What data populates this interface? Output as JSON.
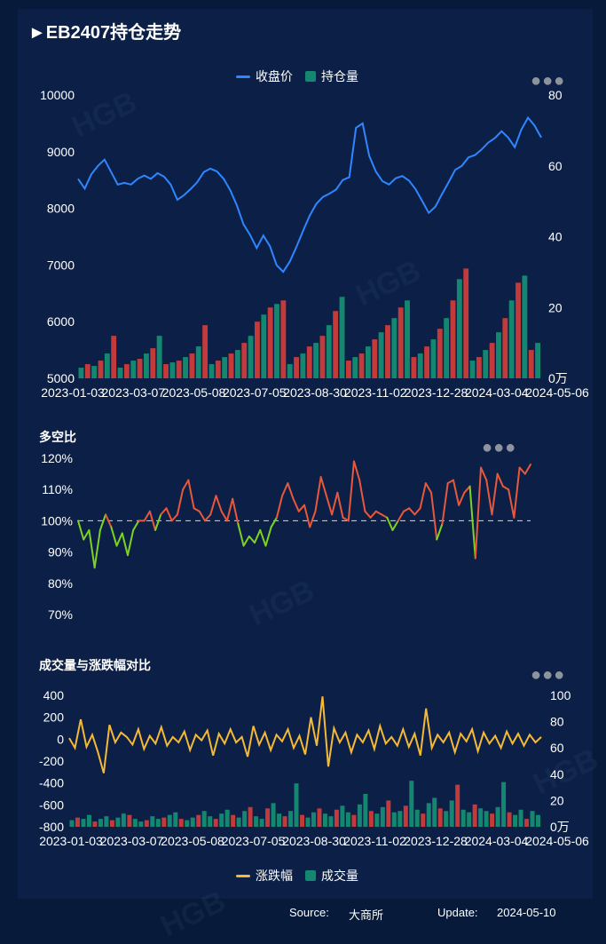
{
  "title": "►EB2407持仓走势",
  "section2_title": "多空比",
  "section3_title": "成交量与涨跌幅对比",
  "watermark": "HGB",
  "menu_icon": "more-dots-icon",
  "colors": {
    "background": "#081a3a",
    "panel": "#0c2047",
    "price": "#2f86ff",
    "bar_green": "#13876f",
    "bar_red": "#c23a3a",
    "ratio_up": "#e8583a",
    "ratio_down": "#7ed321",
    "change": "#f5b935"
  },
  "footer": {
    "source_label": "Source:",
    "source": "大商所",
    "update_label": "Update:",
    "update": "2024-05-10"
  },
  "chart_data": [
    {
      "type": "line+bar",
      "title": "EB2407持仓走势",
      "series": [
        {
          "name": "收盘价",
          "axis": "left",
          "type": "line",
          "values": [
            8520,
            8350,
            8600,
            8750,
            8860,
            8640,
            8420,
            8450,
            8420,
            8520,
            8580,
            8520,
            8620,
            8560,
            8420,
            8150,
            8230,
            8340,
            8460,
            8640,
            8700,
            8650,
            8520,
            8320,
            8050,
            7720,
            7530,
            7300,
            7520,
            7330,
            7000,
            6880,
            7060,
            7320,
            7600,
            7870,
            8080,
            8200,
            8260,
            8330,
            8500,
            8550,
            9420,
            9500,
            8930,
            8650,
            8480,
            8420,
            8530,
            8570,
            8490,
            8340,
            8130,
            7920,
            8030,
            8250,
            8460,
            8680,
            8750,
            8900,
            8940,
            9040,
            9160,
            9240,
            9360,
            9250,
            9080,
            9390,
            9600,
            9460,
            9250
          ]
        },
        {
          "name": "持仓量",
          "axis": "right",
          "type": "bar",
          "unit": "万",
          "values": [
            3,
            4,
            3.5,
            5,
            7,
            12,
            3,
            4,
            5,
            5.5,
            7,
            8.5,
            12,
            4,
            4.5,
            5,
            6,
            7,
            9,
            15,
            4,
            5,
            6,
            7,
            8,
            10,
            12,
            16,
            18,
            20,
            21,
            22,
            4,
            6,
            7,
            9,
            10,
            12,
            15,
            19,
            23,
            5,
            6,
            7,
            9,
            11,
            13,
            15,
            17,
            20,
            22,
            6,
            7,
            9,
            11,
            14,
            17,
            22,
            28,
            31,
            5,
            6,
            8,
            10,
            13,
            17,
            22,
            27,
            29,
            8,
            10
          ]
        }
      ],
      "x_tick_labels": [
        "2023-01-03",
        "2023-03-07",
        "2023-05-08",
        "2023-07-05",
        "2023-08-30",
        "2023-11-02",
        "2023-12-28",
        "2024-03-04",
        "2024-05-06"
      ],
      "y_left": {
        "min": 5000,
        "max": 10000,
        "ticks": [
          "5000",
          "6000",
          "7000",
          "8000",
          "9000",
          "10000"
        ]
      },
      "y_right": {
        "min": 0,
        "max": 80,
        "ticks": [
          "0万",
          "20",
          "40",
          "60",
          "80"
        ]
      },
      "legend_position": "top-center"
    },
    {
      "type": "line",
      "title": "多空比",
      "series": [
        {
          "name": "多空比",
          "unit": "%",
          "values": [
            100,
            94,
            97,
            85,
            97,
            102,
            98,
            92,
            96,
            89,
            97,
            100,
            100,
            103,
            97,
            102,
            104,
            100,
            102,
            110,
            113,
            104,
            103,
            100,
            102,
            108,
            103,
            100,
            107,
            99,
            92,
            95,
            93,
            97,
            92,
            98,
            101,
            108,
            112,
            107,
            103,
            105,
            98,
            103,
            114,
            108,
            102,
            109,
            101,
            100,
            119,
            113,
            103,
            101,
            103,
            102,
            101,
            97,
            100,
            103,
            104,
            102,
            104,
            112,
            109,
            94,
            99,
            112,
            113,
            105,
            109,
            111,
            88,
            117,
            113,
            102,
            115,
            111,
            110,
            101,
            117,
            115,
            118
          ]
        }
      ],
      "y_axis": {
        "min": 70,
        "max": 120,
        "ticks": [
          "70%",
          "80%",
          "90%",
          "100%",
          "110%",
          "120%"
        ]
      },
      "reference_line": 100
    },
    {
      "type": "line+bar",
      "title": "成交量与涨跌幅对比",
      "series": [
        {
          "name": "涨跌幅",
          "axis": "left",
          "type": "line",
          "values": [
            10,
            -80,
            180,
            -70,
            40,
            -120,
            -310,
            130,
            -30,
            60,
            20,
            -50,
            90,
            -90,
            30,
            -40,
            110,
            -60,
            20,
            -30,
            70,
            -100,
            40,
            -10,
            80,
            -150,
            50,
            -40,
            90,
            -30,
            20,
            -160,
            120,
            -50,
            60,
            -100,
            40,
            -20,
            90,
            -80,
            30,
            -140,
            200,
            -60,
            390,
            -250,
            100,
            -30,
            60,
            -120,
            40,
            -30,
            80,
            -90,
            120,
            -40,
            20,
            -60,
            90,
            -70,
            50,
            -150,
            280,
            -80,
            40,
            -30,
            60,
            -120,
            50,
            -20,
            90,
            -110,
            60,
            -40,
            30,
            -80,
            70,
            -40,
            50,
            -60,
            40,
            -30,
            20
          ]
        },
        {
          "name": "成交量",
          "axis": "right",
          "type": "bar",
          "values": [
            5,
            7,
            6,
            9,
            4,
            6,
            8,
            5,
            7,
            10,
            9,
            6,
            4,
            5,
            8,
            6,
            7,
            9,
            11,
            6,
            5,
            7,
            9,
            12,
            8,
            6,
            10,
            13,
            9,
            7,
            12,
            15,
            8,
            6,
            14,
            18,
            10,
            8,
            12,
            33,
            9,
            7,
            11,
            14,
            10,
            8,
            13,
            16,
            11,
            9,
            17,
            25,
            12,
            10,
            15,
            20,
            11,
            12,
            16,
            35,
            13,
            10,
            18,
            22,
            14,
            12,
            20,
            32,
            13,
            11,
            17,
            14,
            12,
            10,
            15,
            34,
            11,
            9,
            13,
            6,
            12,
            9
          ]
        }
      ],
      "x_tick_labels": [
        "2023-01-03",
        "2023-03-07",
        "2023-05-08",
        "2023-07-05",
        "2023-08-30",
        "2023-11-02",
        "2023-12-28",
        "2024-03-04",
        "2024-05-06"
      ],
      "y_left": {
        "min": -800,
        "max": 400,
        "ticks": [
          "-800",
          "-600",
          "-400",
          "-200",
          "0",
          "200",
          "400"
        ]
      },
      "y_right": {
        "min": 0,
        "max": 100,
        "ticks": [
          "0万",
          "20",
          "40",
          "60",
          "80",
          "100"
        ]
      },
      "legend_position": "bottom-center"
    }
  ]
}
